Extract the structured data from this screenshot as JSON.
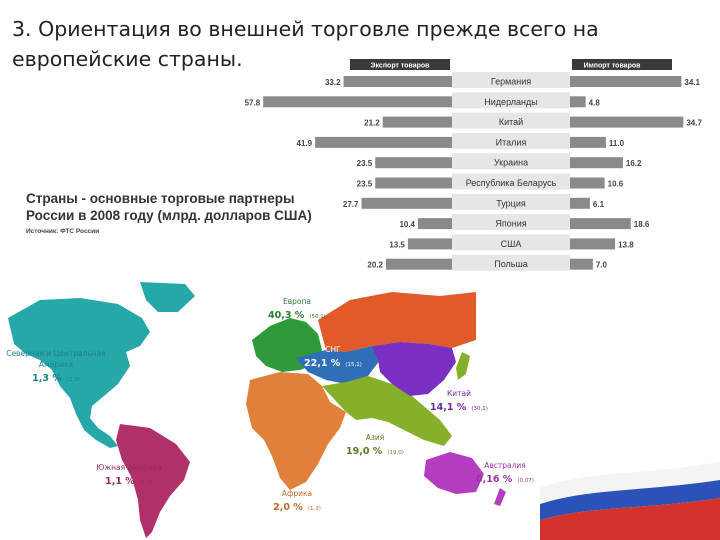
{
  "slide": {
    "title": "3. Ориентация во внешней торговле прежде всего на европейские страны."
  },
  "chart_data": [
    {
      "type": "bar",
      "title": "Страны - основные торговые партнеры России в 2008 году (млрд. долларов США)",
      "source": "Источник: ФТС России",
      "left_header": "Экспорт товаров",
      "right_header": "Импорт товаров",
      "categories": [
        "Германия",
        "Нидерланды",
        "Китай",
        "Италия",
        "Украина",
        "Республика Беларусь",
        "Турция",
        "Япония",
        "США",
        "Польша"
      ],
      "series": [
        {
          "name": "Экспорт товаров",
          "values": [
            33.2,
            57.8,
            21.2,
            41.9,
            23.5,
            23.5,
            27.7,
            10.4,
            13.5,
            20.2
          ]
        },
        {
          "name": "Импорт товаров",
          "values": [
            34.1,
            4.8,
            34.7,
            11.0,
            16.2,
            10.6,
            6.1,
            18.6,
            13.8,
            7.0
          ]
        }
      ],
      "value_labels": {
        "export": [
          "33.2",
          "57.8",
          "21.2",
          "41.9",
          "23.5",
          "23.5",
          "27.7",
          "10.4",
          "13.5",
          "20.2"
        ],
        "import": [
          "34.1",
          "4.8",
          "34.7",
          "11.0",
          "16.2",
          "10.6",
          "6.1",
          "18.6",
          "13.8",
          "7.0"
        ]
      },
      "xlim": [
        0,
        60
      ],
      "grid": false,
      "colors": {
        "bar": "#8a8a8a",
        "label_bg": "#e6e6e6",
        "header_bg": "#3a3a3a"
      }
    },
    {
      "type": "map",
      "regions": [
        {
          "id": "europe",
          "name": "Европа",
          "pct": "40,3 %",
          "prev": "(50,1)",
          "color": "#2e9a3a"
        },
        {
          "id": "cis",
          "name": "СНГ",
          "pct": "22,1 %",
          "prev": "(15,1)",
          "color": "#2f6fb8"
        },
        {
          "id": "na",
          "name": "Северная и Центральная Америка",
          "pct": "1,3 %",
          "prev": "(2,9)",
          "color": "#27a8a8"
        },
        {
          "id": "china",
          "name": "Китай",
          "pct": "14,1 %",
          "prev": "(30,1)",
          "color": "#7a2fc0"
        },
        {
          "id": "asia",
          "name": "Азия",
          "pct": "19,0 %",
          "prev": "(19,0)",
          "color": "#86b02a"
        },
        {
          "id": "sa",
          "name": "Южная Америка",
          "pct": "1,1 %",
          "prev": "(1,0)",
          "color": "#b0306a"
        },
        {
          "id": "africa",
          "name": "Африка",
          "pct": "2,0 %",
          "prev": "(1,3)",
          "color": "#e0803a"
        },
        {
          "id": "australia",
          "name": "Австралия",
          "pct": "0,16 %",
          "prev": "(0,07)",
          "color": "#b43cc0"
        }
      ],
      "colors": {
        "russia": "#e05a2a"
      }
    }
  ]
}
